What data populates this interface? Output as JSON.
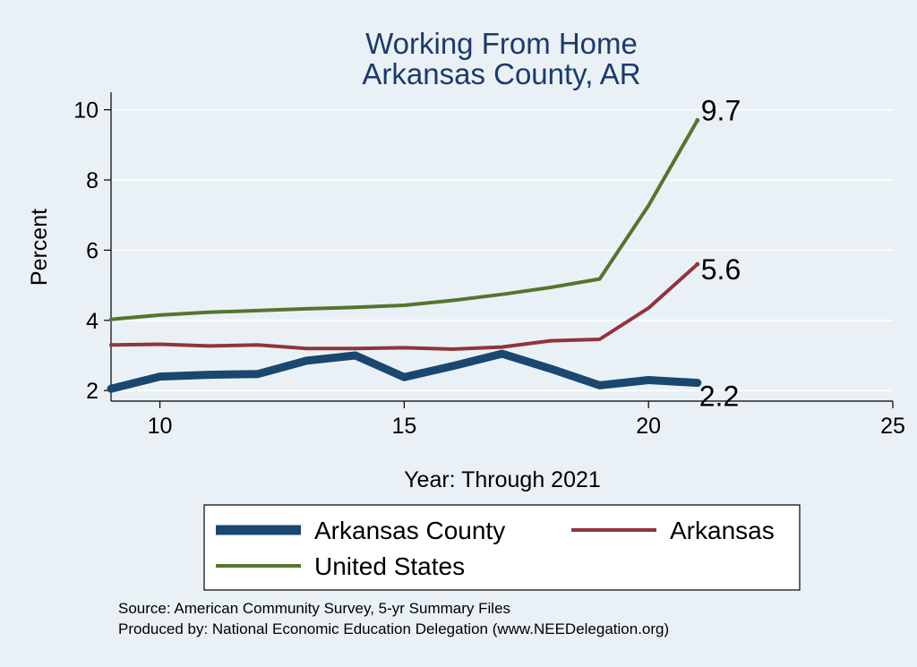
{
  "chart_data": {
    "type": "line",
    "title": [
      "Working From Home",
      "Arkansas County, AR"
    ],
    "xlabel": "Year: Through 2021",
    "ylabel": "Percent",
    "xlim": [
      9,
      25
    ],
    "ylim": [
      1.7,
      10.5
    ],
    "xticks": [
      10,
      15,
      20,
      25
    ],
    "yticks": [
      2,
      4,
      6,
      8,
      10
    ],
    "grid": true,
    "legend_position": "bottom",
    "x": [
      9,
      10,
      11,
      12,
      13,
      14,
      15,
      16,
      17,
      18,
      19,
      20,
      21
    ],
    "series": [
      {
        "name": "Arkansas County",
        "color": "#1a476f",
        "values": [
          2.05,
          2.4,
          2.45,
          2.47,
          2.85,
          3.0,
          2.38,
          2.7,
          3.05,
          2.62,
          2.15,
          2.3,
          2.22
        ],
        "end_label": "2.2"
      },
      {
        "name": "Arkansas",
        "color": "#90353b",
        "values": [
          3.3,
          3.32,
          3.27,
          3.3,
          3.2,
          3.2,
          3.22,
          3.18,
          3.24,
          3.42,
          3.46,
          4.35,
          5.6
        ],
        "end_label": "5.6"
      },
      {
        "name": "United States",
        "color": "#55752f",
        "values": [
          4.03,
          4.15,
          4.23,
          4.28,
          4.33,
          4.37,
          4.43,
          4.57,
          4.74,
          4.94,
          5.18,
          7.27,
          9.7
        ],
        "end_label": "9.7"
      }
    ],
    "notes": [
      "Source: American Community Survey, 5-yr Summary Files",
      "Produced by: National Economic Education Delegation (www.NEEDelegation.org)"
    ]
  }
}
